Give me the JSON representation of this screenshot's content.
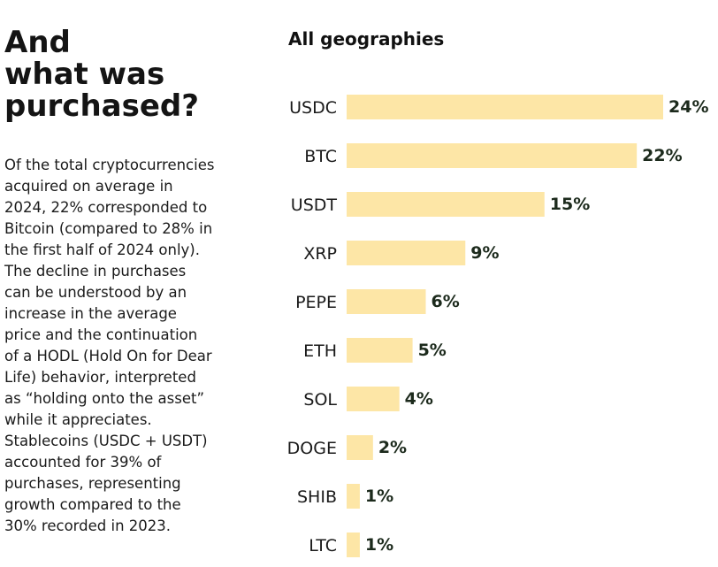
{
  "intro": {
    "heading_lines": [
      "And",
      "what was",
      "purchased?"
    ],
    "body_lines": [
      "Of the total cryptocurrencies",
      "acquired on average in",
      "2024, 22% corresponded to",
      "Bitcoin (compared to 28% in",
      "the first half of 2024 only).",
      "The decline in purchases",
      "can be understood by an",
      "increase in the average",
      "price and the continuation",
      "of a HODL (Hold On for Dear",
      "Life) behavior, interpreted",
      "as “holding onto the asset”",
      "while it appreciates.",
      "Stablecoins (USDC + USDT)",
      "accounted for 39% of",
      "purchases, representing",
      "growth compared to the",
      "30% recorded in 2023."
    ]
  },
  "chart_data": {
    "type": "bar",
    "orientation": "horizontal",
    "title": "All geographies",
    "categories": [
      "USDC",
      "BTC",
      "USDT",
      "XRP",
      "PEPE",
      "ETH",
      "SOL",
      "DOGE",
      "SHIB",
      "LTC"
    ],
    "values": [
      24,
      22,
      15,
      9,
      6,
      5,
      4,
      2,
      1,
      1
    ],
    "value_labels": [
      "24%",
      "22%",
      "15%",
      "9%",
      "6%",
      "5%",
      "4%",
      "2%",
      "1%",
      "1%"
    ],
    "unit": "%",
    "bar_color": "#fde6a6",
    "grid": false,
    "legend": "none"
  }
}
